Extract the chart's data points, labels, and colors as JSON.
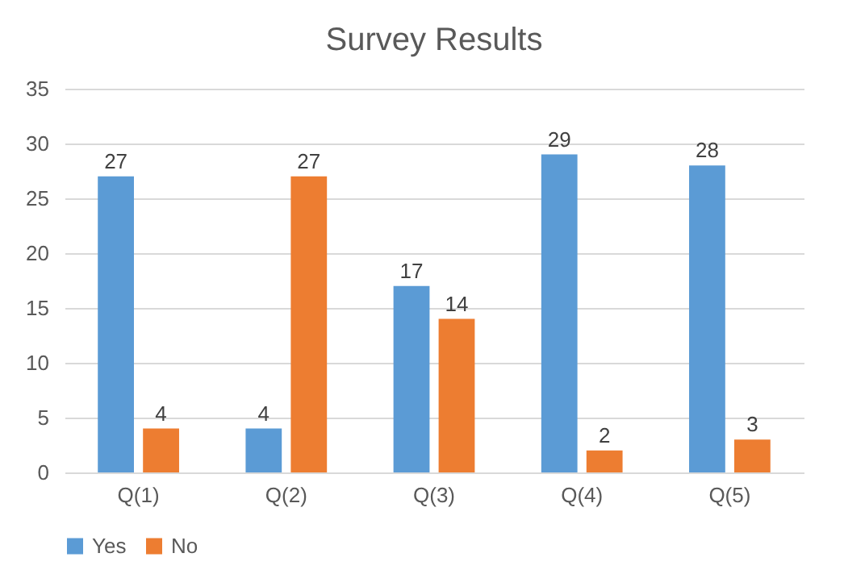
{
  "chart_data": {
    "type": "bar",
    "title": "Survey Results",
    "categories": [
      "Q(1)",
      "Q(2)",
      "Q(3)",
      "Q(4)",
      "Q(5)"
    ],
    "series": [
      {
        "name": "Yes",
        "color": "#5b9bd5",
        "values": [
          27,
          4,
          17,
          29,
          28
        ]
      },
      {
        "name": "No",
        "color": "#ed7d31",
        "values": [
          4,
          27,
          14,
          2,
          3
        ]
      }
    ],
    "ylim": [
      0,
      35
    ],
    "yticks": [
      0,
      5,
      10,
      15,
      20,
      25,
      30,
      35
    ],
    "grid": "y",
    "legend": "bottom",
    "data_labels": true
  }
}
